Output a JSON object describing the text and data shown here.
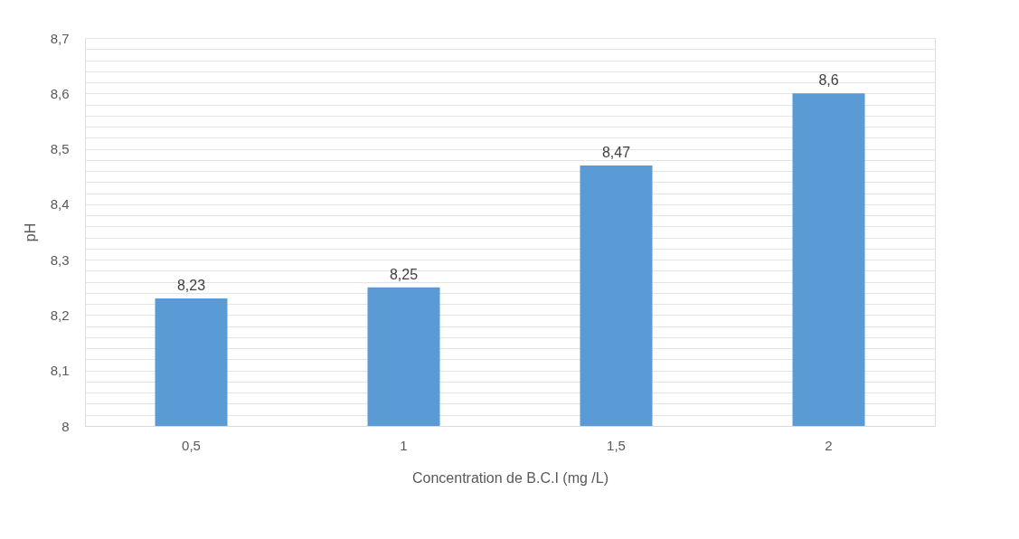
{
  "chart_data": {
    "type": "bar",
    "xlabel": "Concentration de B.C.I (mg /L)",
    "ylabel": "pH",
    "categories": [
      "0,5",
      "1",
      "1,5",
      "2"
    ],
    "values": [
      8.23,
      8.25,
      8.47,
      8.6
    ],
    "value_labels": [
      "8,23",
      "8,25",
      "8,47",
      "8,6"
    ],
    "color": "#5b9bd5",
    "ylim": [
      8,
      8.7
    ],
    "yticks": [
      {
        "value": 8,
        "label": "8"
      },
      {
        "value": 8.02,
        "label": null
      },
      {
        "value": 8.04,
        "label": null
      },
      {
        "value": 8.06,
        "label": null
      },
      {
        "value": 8.08,
        "label": null
      },
      {
        "value": 8.1,
        "label": "8,1"
      },
      {
        "value": 8.12,
        "label": null
      },
      {
        "value": 8.14,
        "label": null
      },
      {
        "value": 8.16,
        "label": null
      },
      {
        "value": 8.18,
        "label": null
      },
      {
        "value": 8.2,
        "label": "8,2"
      },
      {
        "value": 8.22,
        "label": null
      },
      {
        "value": 8.24,
        "label": null
      },
      {
        "value": 8.26,
        "label": null
      },
      {
        "value": 8.28,
        "label": null
      },
      {
        "value": 8.3,
        "label": "8,3"
      },
      {
        "value": 8.32,
        "label": null
      },
      {
        "value": 8.34,
        "label": null
      },
      {
        "value": 8.36,
        "label": null
      },
      {
        "value": 8.38,
        "label": null
      },
      {
        "value": 8.4,
        "label": "8,4"
      },
      {
        "value": 8.42,
        "label": null
      },
      {
        "value": 8.44,
        "label": null
      },
      {
        "value": 8.46,
        "label": null
      },
      {
        "value": 8.48,
        "label": null
      },
      {
        "value": 8.5,
        "label": "8,5"
      },
      {
        "value": 8.52,
        "label": null
      },
      {
        "value": 8.54,
        "label": null
      },
      {
        "value": 8.56,
        "label": null
      },
      {
        "value": 8.58,
        "label": null
      },
      {
        "value": 8.6,
        "label": "8,6"
      },
      {
        "value": 8.62,
        "label": null
      },
      {
        "value": 8.64,
        "label": null
      },
      {
        "value": 8.66,
        "label": null
      },
      {
        "value": 8.68,
        "label": null
      },
      {
        "value": 8.7,
        "label": "8,7"
      }
    ],
    "grid": "y"
  }
}
